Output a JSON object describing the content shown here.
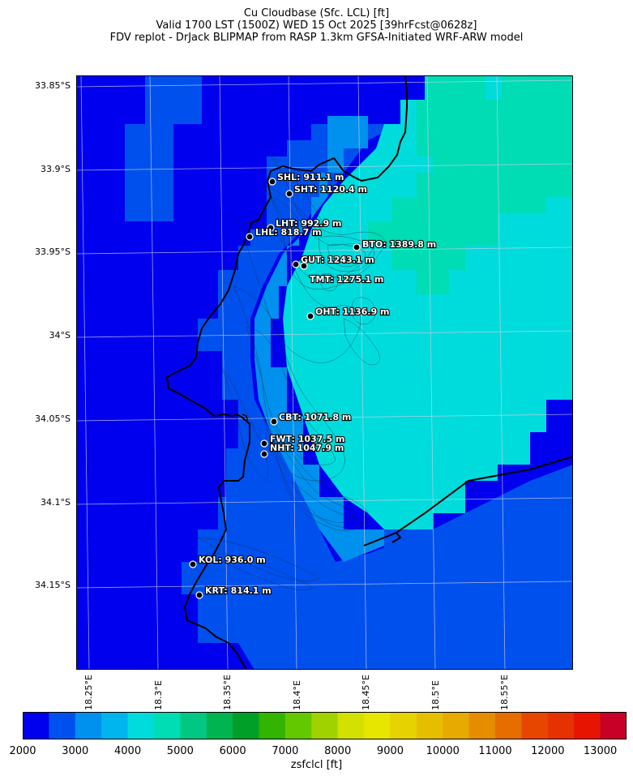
{
  "title": {
    "line1": "Cu Cloudbase (Sfc. LCL) [ft]",
    "line2": "Valid 1700 LST (1500Z) WED 15 Oct 2025 [39hrFcst@0628z]",
    "line3": "FDV replot - DrJack BLIPMAP from RASP 1.3km GFSA-Initiated WRF-ARW model"
  },
  "map": {
    "lat_labels": [
      "33.85°S",
      "33.9°S",
      "33.95°S",
      "34°S",
      "34.05°S",
      "34.1°S",
      "34.15°S"
    ],
    "lon_labels": [
      "18.25°E",
      "18.3°E",
      "18.35°E",
      "18.4°E",
      "18.45°E",
      "18.5°E",
      "18.55°E"
    ],
    "sites": [
      {
        "code": "SHL",
        "label": "SHL: 911.1 m"
      },
      {
        "code": "SHT",
        "label": "SHT: 1120.4 m"
      },
      {
        "code": "LHT",
        "label": "LHT: 992.9 m"
      },
      {
        "code": "LHL",
        "label": "LHL: 818.7 m"
      },
      {
        "code": "BTO",
        "label": "BTO: 1389.8 m"
      },
      {
        "code": "GUT",
        "label": "GUT: 1243.1 m"
      },
      {
        "code": "TMT",
        "label": "TMT: 1275.1 m"
      },
      {
        "code": "OHT",
        "label": "OHT: 1136.9 m"
      },
      {
        "code": "CBT",
        "label": "CBT: 1071.8 m"
      },
      {
        "code": "FWT",
        "label": "FWT: 1037.5 m"
      },
      {
        "code": "NHT",
        "label": "NHT: 1047.9 m"
      },
      {
        "code": "KOL",
        "label": "KOL: 936.0 m"
      },
      {
        "code": "KRT",
        "label": "KRT: 814.1 m"
      }
    ]
  },
  "colorbar": {
    "label": "zsfclcl [ft]",
    "ticks": [
      "2000",
      "3000",
      "4000",
      "5000",
      "6000",
      "7000",
      "8000",
      "9000",
      "10000",
      "11000",
      "12000",
      "13000"
    ],
    "colors": [
      "#0000ee",
      "#0050ee",
      "#0090ee",
      "#00b4ee",
      "#00dcdc",
      "#00dcb4",
      "#00c882",
      "#00b450",
      "#00a028",
      "#32b400",
      "#64c800",
      "#a0d200",
      "#d2e100",
      "#e6e600",
      "#e6d200",
      "#e6be00",
      "#e6aa00",
      "#e68c00",
      "#e66e00",
      "#e64600",
      "#e63200",
      "#e61400",
      "#c80028"
    ]
  }
}
